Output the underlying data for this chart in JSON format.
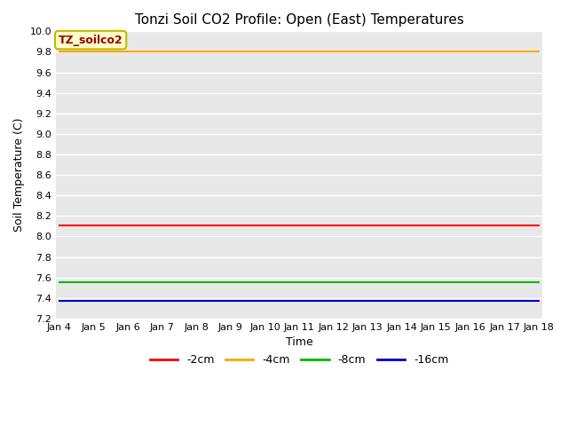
{
  "title": "Tonzi Soil CO2 Profile: Open (East) Temperatures",
  "xlabel": "Time",
  "ylabel": "Soil Temperature (C)",
  "ylim": [
    7.2,
    10.0
  ],
  "x_ticks": [
    "Jan 4",
    "Jan 5",
    "Jan 6",
    "Jan 7",
    "Jan 8",
    "Jan 9",
    "Jan 10",
    "Jan 11",
    "Jan 12",
    "Jan 13",
    "Jan 14",
    "Jan 15",
    "Jan 16",
    "Jan 17",
    "Jan 18"
  ],
  "series": [
    {
      "label": "-2cm",
      "color": "#ff0000",
      "value": 8.11
    },
    {
      "label": "-4cm",
      "color": "#ffa500",
      "value": 9.8
    },
    {
      "label": "-8cm",
      "color": "#00bb00",
      "value": 7.55
    },
    {
      "label": "-16cm",
      "color": "#0000cc",
      "value": 7.37
    }
  ],
  "legend_box_label": "TZ_soilco2",
  "legend_box_facecolor": "#ffffcc",
  "legend_box_edgecolor": "#bbbb00",
  "legend_box_textcolor": "#990000",
  "bg_color": "#e8e8e8",
  "white": "#ffffff",
  "title_fontsize": 11,
  "tick_fontsize": 8,
  "axis_label_fontsize": 9
}
